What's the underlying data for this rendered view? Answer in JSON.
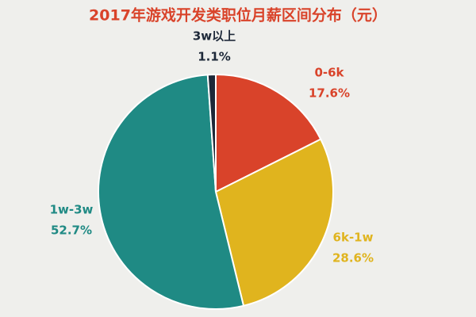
{
  "chart_data": {
    "type": "pie",
    "title": "2017年游戏开发类职位月薪区间分布（元）",
    "categories": [
      "0-6k",
      "6k-1w",
      "1w-3w",
      "3w以上"
    ],
    "values": [
      17.6,
      28.6,
      52.7,
      1.1
    ],
    "value_labels": [
      "17.6%",
      "28.6%",
      "52.7%",
      "1.1%"
    ],
    "colors": [
      "#d9432a",
      "#e0b41e",
      "#1f8a84",
      "#1d2838"
    ],
    "start_angle": 0,
    "direction": "clockwise"
  }
}
